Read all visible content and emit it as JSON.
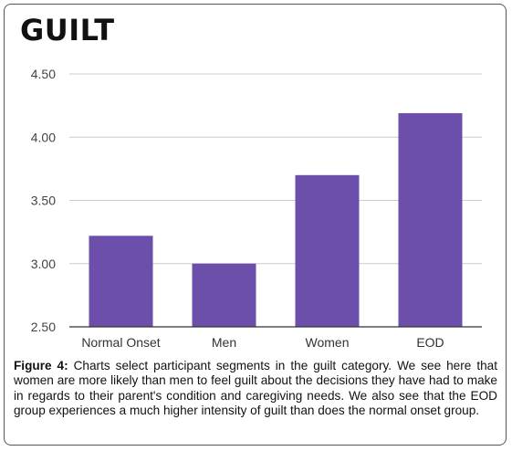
{
  "chart_data": {
    "type": "bar",
    "title": "GUILT",
    "categories": [
      "Normal Onset",
      "Men",
      "Women",
      "EOD"
    ],
    "values": [
      3.22,
      3.0,
      3.7,
      4.19
    ],
    "ylim": [
      2.5,
      4.5
    ],
    "yticks": [
      "2.50",
      "3.00",
      "3.50",
      "4.00",
      "4.50"
    ],
    "ytick_values": [
      2.5,
      3.0,
      3.5,
      4.0,
      4.5
    ],
    "grid": true,
    "bar_color": "#6b4faa",
    "gridline_color": "#cccccc",
    "axis_line_color": "#333333",
    "xlabel": "",
    "ylabel": ""
  },
  "caption": {
    "label": "Figure 4:",
    "text": " Charts select participant segments in the guilt category. We see here that women are more likely than men to feel guilt about the decisions they have had to make in regards to their parent's condition and caregiving needs. We also see that the EOD group experiences a much higher intensity of guilt than does the normal onset group."
  }
}
